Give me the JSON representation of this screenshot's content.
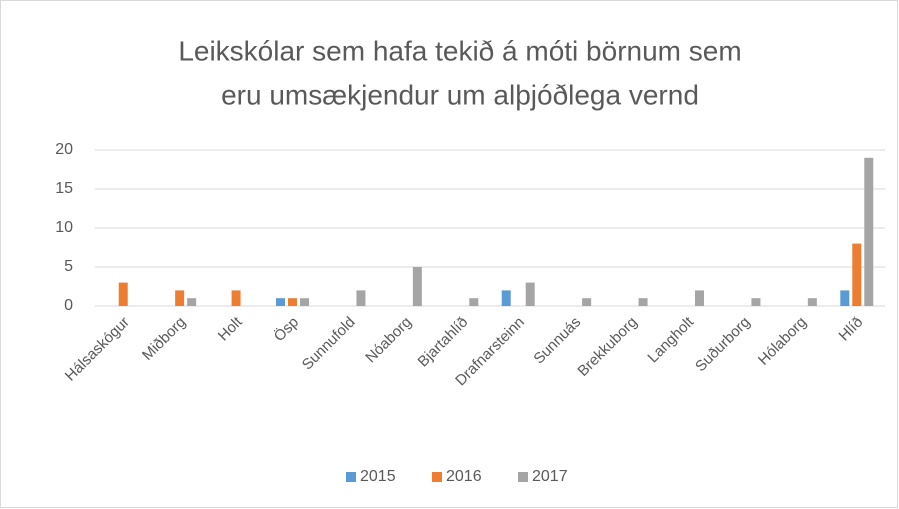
{
  "chart_data": {
    "type": "bar",
    "title": [
      "Leikskólar sem hafa tekið á móti börnum sem",
      "eru umsækjendur um alþjóðlega vernd"
    ],
    "categories": [
      "Hálsaskógur",
      "Miðborg",
      "Holt",
      "Ösp",
      "Sunnufold",
      "Nóaborg",
      "Bjartahlíð",
      "Drafnarsteinn",
      "Sunnuás",
      "Brekkuborg",
      "Langholt",
      "Suðurborg",
      "Hólaborg",
      "Hlíð"
    ],
    "series": [
      {
        "name": "2015",
        "color": "#5b9bd5",
        "values": [
          0,
          0,
          0,
          1,
          0,
          0,
          0,
          2,
          0,
          0,
          0,
          0,
          0,
          2
        ]
      },
      {
        "name": "2016",
        "color": "#ed7d31",
        "values": [
          3,
          2,
          2,
          1,
          0,
          0,
          0,
          0,
          0,
          0,
          0,
          0,
          0,
          8
        ]
      },
      {
        "name": "2017",
        "color": "#a5a5a5",
        "values": [
          0,
          1,
          0,
          1,
          2,
          5,
          1,
          3,
          1,
          1,
          2,
          1,
          1,
          19
        ]
      }
    ],
    "ylim": [
      0,
      20
    ],
    "yticks": [
      0,
      5,
      10,
      15,
      20
    ],
    "grid": true,
    "legend": "bottom"
  }
}
